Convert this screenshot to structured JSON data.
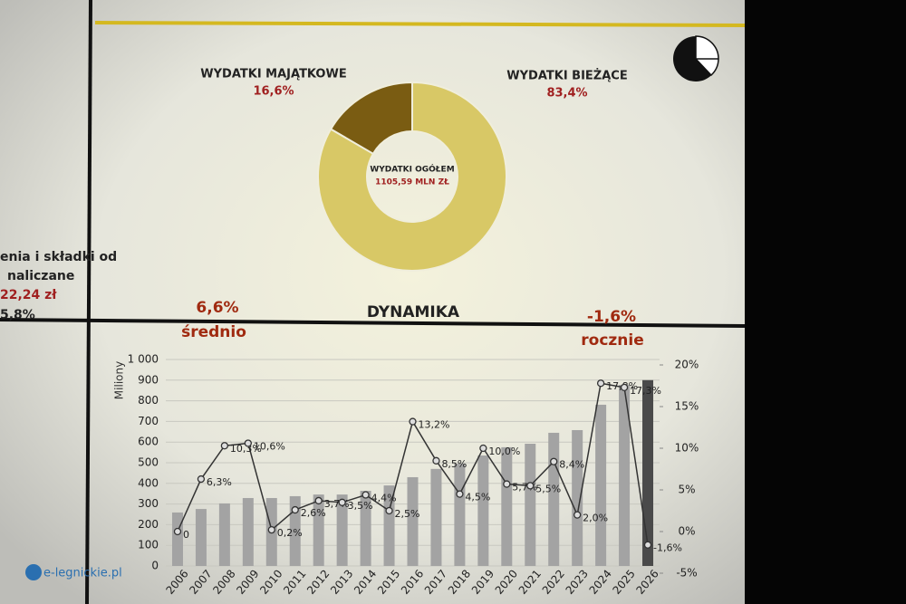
{
  "chart_data": [
    {
      "type": "pie",
      "labels": [
        "WYDATKI MAJĄTKOWE",
        "WYDATKI BIEŻĄCE"
      ],
      "values": [
        16.6,
        83.4
      ],
      "value_labels": [
        "16,6%",
        "83,4%"
      ],
      "colors": [
        "#7a5c12",
        "#d8c866"
      ],
      "center_title": "WYDATKI OGÓŁEM",
      "center_value": "1105,59 MLN ZŁ"
    },
    {
      "type": "combo",
      "title": "DYNAMIKA",
      "ylabel": "Miliony",
      "categories": [
        "2006",
        "2007",
        "2008",
        "2009",
        "2010",
        "2011",
        "2012",
        "2013",
        "2014",
        "2015",
        "2016",
        "2017",
        "2018",
        "2019",
        "2020",
        "2021",
        "2022",
        "2023",
        "2024",
        "2025",
        "2026"
      ],
      "ylim": [
        0,
        1000
      ],
      "yticks": [
        0,
        100,
        200,
        300,
        400,
        500,
        600,
        700,
        800,
        900,
        {
          "value": 1000,
          "label": "1 000"
        }
      ],
      "y2lim": [
        -5,
        20
      ],
      "y2ticks": [
        {
          "value": -5,
          "label": "-5%"
        },
        {
          "value": 0,
          "label": "0%"
        },
        {
          "value": 5,
          "label": "5%"
        },
        {
          "value": 10,
          "label": "10%"
        },
        {
          "value": 15,
          "label": "15%"
        },
        {
          "value": 20,
          "label": "20%"
        }
      ],
      "series": [
        {
          "kind": "bar",
          "values": [
            259,
            276,
            303,
            329,
            329,
            338,
            346,
            346,
            364,
            390,
            430,
            470,
            496,
            535,
            575,
            592,
            645,
            658,
            781,
            877,
            900
          ],
          "colors": [
            "#a3a3a3",
            "#a3a3a3",
            "#a3a3a3",
            "#a3a3a3",
            "#a3a3a3",
            "#a3a3a3",
            "#a3a3a3",
            "#a3a3a3",
            "#a3a3a3",
            "#a3a3a3",
            "#a3a3a3",
            "#a3a3a3",
            "#a3a3a3",
            "#a3a3a3",
            "#a3a3a3",
            "#a3a3a3",
            "#a3a3a3",
            "#a3a3a3",
            "#a3a3a3",
            "#a3a3a3",
            "#4a4a4a"
          ]
        },
        {
          "kind": "line",
          "axis": "y2",
          "color": "#333333",
          "values": [
            0,
            6.3,
            10.3,
            10.6,
            0.2,
            2.6,
            3.7,
            3.5,
            4.4,
            2.5,
            13.2,
            8.5,
            4.5,
            10.0,
            5.7,
            5.5,
            8.4,
            2.0,
            17.8,
            17.3,
            -1.6
          ],
          "value_labels": [
            "0",
            "6,3%",
            "10,3%",
            "10,6%",
            "0,2%",
            "2,6%",
            "3,7%",
            "3,5%",
            "4,4%",
            "2,5%",
            "13,2%",
            "8,5%",
            "4,5%",
            "10,0%",
            "5,7%",
            "5,5%",
            "8,4%",
            "2,0%",
            "17,8%",
            "17,3%",
            "-1,6%"
          ]
        }
      ],
      "annotations": [
        {
          "value": "6,6%",
          "note": "średnio"
        },
        {
          "value": "-1,6%",
          "note": "rocznie"
        }
      ]
    }
  ],
  "side_text": [
    "enia i składki od",
    "naliczane",
    "22,24 zł",
    "5,8%"
  ],
  "watermark": "e-legnickie.pl"
}
